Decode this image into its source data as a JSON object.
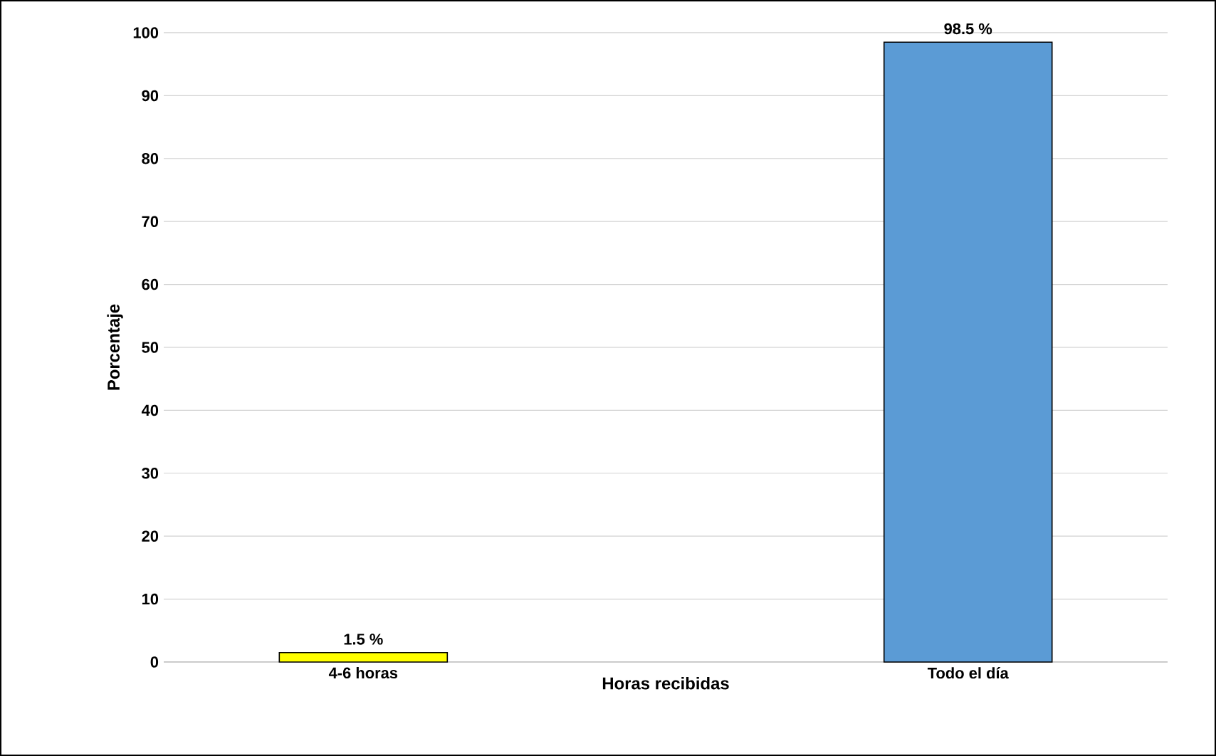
{
  "chart_data": {
    "type": "bar",
    "xlabel": "Horas recibidas",
    "ylabel": "Porcentaje",
    "categories": [
      "4-6 horas",
      "Todo el día"
    ],
    "values": [
      1.5,
      98.5
    ],
    "colors": [
      "#ffff00",
      "#5b9bd5"
    ],
    "value_labels": [
      "1.5 %",
      "98.5 %"
    ],
    "ylim": [
      0,
      100
    ],
    "yticks": [
      0,
      10,
      20,
      30,
      40,
      50,
      60,
      70,
      80,
      90,
      100
    ],
    "grid": "y"
  }
}
